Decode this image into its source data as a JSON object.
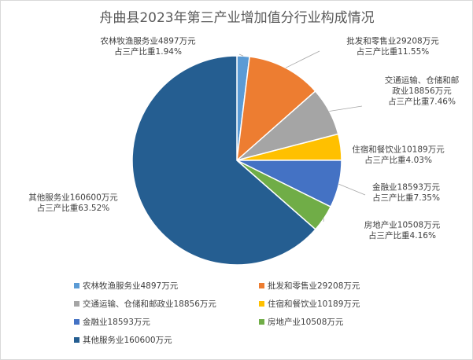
{
  "chart_data": {
    "type": "pie",
    "title": "舟曲县2023年第三产业增加值分行业构成情况",
    "unit": "万元",
    "legend_position": "bottom",
    "series": [
      {
        "name": "农林牧渔服务业4897万元",
        "value": 4897,
        "share_text": "占三产比重1.94%",
        "color": "#5b9bd5",
        "label_lines": [
          "农林牧渔服务业4897万元",
          "占三产比重1.94%"
        ]
      },
      {
        "name": "批发和零售业29208万元",
        "value": 29208,
        "share_text": "占三产比重11.55%",
        "color": "#ed7d31",
        "label_lines": [
          "批发和零售业29208万元",
          "占三产比重11.55%"
        ]
      },
      {
        "name": "交通运输、仓储和邮政业18856万元",
        "value": 18856,
        "share_text": "占三产比重7.46%",
        "color": "#a5a5a5",
        "label_lines": [
          "交通运输、仓储和邮",
          "政业18856万元",
          "占三产比重7.46%"
        ]
      },
      {
        "name": "住宿和餐饮业10189万元",
        "value": 10189,
        "share_text": "占三产比重4.03%",
        "color": "#ffc000",
        "label_lines": [
          "住宿和餐饮业10189万元",
          "占三产比重4.03%"
        ]
      },
      {
        "name": "金融业18593万元",
        "value": 18593,
        "share_text": "占三产比重7.35%",
        "color": "#4472c4",
        "label_lines": [
          "金融业18593万元",
          "占三产比重7.35%"
        ]
      },
      {
        "name": "房地产业10508万元",
        "value": 10508,
        "share_text": "占三产比重4.16%",
        "color": "#70ad47",
        "label_lines": [
          "房地产业10508万元",
          "占三产比重4.16%"
        ]
      },
      {
        "name": "其他服务业160600万元",
        "value": 160600,
        "share_text": "占三产比重63.52%",
        "color": "#255e91",
        "label_lines": [
          "其他服务业160600万元",
          "占三产比重63.52%"
        ]
      }
    ]
  }
}
